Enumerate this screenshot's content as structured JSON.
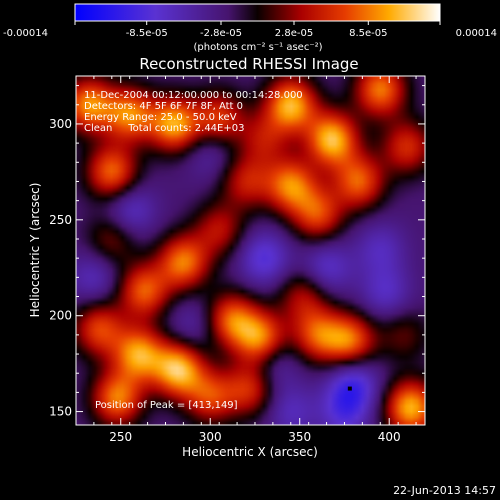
{
  "chart_data": {
    "type": "heatmap",
    "title": "Reconstructed RHESSI Image",
    "xlabel": "Heliocentric X (arcsec)",
    "ylabel": "Heliocentric Y (arcsec)",
    "xlim": [
      225,
      420
    ],
    "ylim": [
      143,
      325
    ],
    "x_ticks": [
      250,
      300,
      350,
      400
    ],
    "y_ticks": [
      150,
      200,
      250,
      300
    ],
    "colorbar": {
      "ticks": [
        "-0.00014",
        "-8.5e-05",
        "-2.8e-05",
        "2.8e-05",
        "8.5e-05",
        "0.00014"
      ],
      "tick_values": [
        -0.00014,
        -8.5e-05,
        -2.8e-05,
        2.8e-05,
        8.5e-05,
        0.00014
      ],
      "range": [
        -0.00014,
        0.00014
      ],
      "units_line": "(photons cm⁻² s⁻¹ asec⁻²)"
    },
    "annotations": [
      "11-Dec-2004 00:12:00.000 to 00:14:28.000",
      "Detectors: 4F 5F 6F 7F 8F, Att 0",
      "Energy Range: 25.0 - 50.0 keV",
      "Clean     Total counts: 2.44E+03",
      "Position of Peak = [413,149]"
    ],
    "peak": {
      "x": 413,
      "y": 149
    },
    "timestamp": "22-Jun-2013 14:57",
    "blobs": [
      {
        "x": 232,
        "y": 310,
        "v": 0.000115
      },
      {
        "x": 255,
        "y": 305,
        "v": 0.00011
      },
      {
        "x": 280,
        "y": 300,
        "v": 0.000125
      },
      {
        "x": 305,
        "y": 303,
        "v": 8.5e-05
      },
      {
        "x": 330,
        "y": 292,
        "v": 6e-05
      },
      {
        "x": 345,
        "y": 310,
        "v": 0.00013
      },
      {
        "x": 368,
        "y": 292,
        "v": 0.000135
      },
      {
        "x": 383,
        "y": 270,
        "v": 0.0001
      },
      {
        "x": 395,
        "y": 318,
        "v": 0.00011
      },
      {
        "x": 410,
        "y": 288,
        "v": 8e-05
      },
      {
        "x": 245,
        "y": 275,
        "v": 0.000105
      },
      {
        "x": 345,
        "y": 268,
        "v": 0.00011
      },
      {
        "x": 360,
        "y": 253,
        "v": 9e-05
      },
      {
        "x": 320,
        "y": 270,
        "v": 7e-05
      },
      {
        "x": 245,
        "y": 240,
        "v": 5e-05
      },
      {
        "x": 285,
        "y": 228,
        "v": 0.00011
      },
      {
        "x": 305,
        "y": 245,
        "v": 6.5e-05
      },
      {
        "x": 263,
        "y": 213,
        "v": 0.0001
      },
      {
        "x": 238,
        "y": 193,
        "v": 9e-05
      },
      {
        "x": 260,
        "y": 180,
        "v": 0.00012
      },
      {
        "x": 282,
        "y": 172,
        "v": 0.000135
      },
      {
        "x": 248,
        "y": 157,
        "v": 0.00011
      },
      {
        "x": 312,
        "y": 198,
        "v": 0.0001
      },
      {
        "x": 328,
        "y": 188,
        "v": 0.000115
      },
      {
        "x": 322,
        "y": 162,
        "v": 8e-05
      },
      {
        "x": 300,
        "y": 158,
        "v": 8.5e-05
      },
      {
        "x": 360,
        "y": 190,
        "v": 9e-05
      },
      {
        "x": 378,
        "y": 187,
        "v": 0.000105
      },
      {
        "x": 352,
        "y": 210,
        "v": 6e-05
      },
      {
        "x": 412,
        "y": 152,
        "v": 0.00013
      },
      {
        "x": 408,
        "y": 190,
        "v": 4e-05
      },
      {
        "x": 255,
        "y": 255,
        "v": -5e-05
      },
      {
        "x": 235,
        "y": 220,
        "v": -4e-05
      },
      {
        "x": 300,
        "y": 285,
        "v": -3e-05
      },
      {
        "x": 330,
        "y": 230,
        "v": -6e-05
      },
      {
        "x": 365,
        "y": 225,
        "v": -5e-05
      },
      {
        "x": 395,
        "y": 235,
        "v": -4e-05
      },
      {
        "x": 335,
        "y": 175,
        "v": -4e-05
      },
      {
        "x": 380,
        "y": 165,
        "v": -6.5e-05
      },
      {
        "x": 398,
        "y": 212,
        "v": -4.5e-05
      },
      {
        "x": 290,
        "y": 195,
        "v": -3e-05
      },
      {
        "x": 345,
        "y": 150,
        "v": -4e-05
      },
      {
        "x": 375,
        "y": 150,
        "v": -5.5e-05
      }
    ]
  }
}
